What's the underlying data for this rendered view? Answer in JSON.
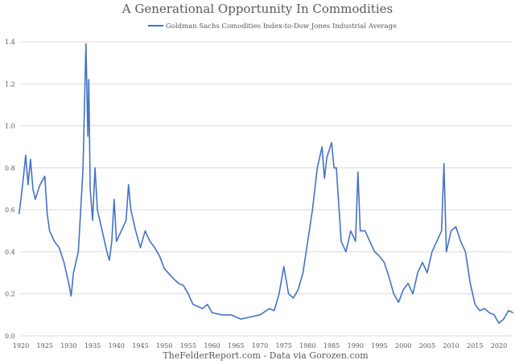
{
  "chart_data": {
    "type": "line",
    "title": "A Generational Opportunity In Commodities",
    "source_note": "TheFelderReport.com - Data via Gorozen.com",
    "legend_placement": "top",
    "grid": true,
    "xlim": [
      1920,
      2020
    ],
    "ylim": [
      0,
      1.4
    ],
    "x_ticks": [
      "1920",
      "1925",
      "1930",
      "1935",
      "1940",
      "1945",
      "1950",
      "1955",
      "1960",
      "1965",
      "1970",
      "1975",
      "1980",
      "1985",
      "1990",
      "1995",
      "2000",
      "2005",
      "2010",
      "2015",
      "2020"
    ],
    "y_ticks": [
      "0.0",
      "0.2",
      "0.4",
      "0.6",
      "0.8",
      "1.0",
      "1.2",
      "1.4"
    ],
    "series": [
      {
        "name": "Goldman Sachs Comodities Index-to-Dow Jones Industrial Average",
        "color": "#4472C4",
        "x": [
          1919.6,
          1920,
          1920.5,
          1921,
          1921.5,
          1922,
          1922.5,
          1923,
          1924,
          1925,
          1925.5,
          1926,
          1927,
          1928,
          1929,
          1930,
          1930.5,
          1931,
          1932,
          1932.5,
          1933,
          1933.3,
          1933.6,
          1934,
          1934.2,
          1934.5,
          1935,
          1935.5,
          1936,
          1937,
          1938,
          1938.5,
          1939,
          1939.5,
          1940,
          1941,
          1942,
          1942.5,
          1943,
          1944,
          1945,
          1946,
          1947,
          1948,
          1949,
          1950,
          1952,
          1953,
          1954,
          1955,
          1956,
          1958,
          1959,
          1960,
          1962,
          1964,
          1966,
          1968,
          1970,
          1972,
          1973,
          1974,
          1975,
          1976,
          1977,
          1978,
          1979,
          1980,
          1981,
          1982,
          1983,
          1983.5,
          1984,
          1985,
          1985.5,
          1986,
          1987,
          1988,
          1989,
          1990,
          1990.5,
          1991,
          1992,
          1993,
          1994,
          1995,
          1996,
          1997,
          1998,
          1999,
          2000,
          2001,
          2002,
          2003,
          2004,
          2005,
          2006,
          2007,
          2008,
          2008.5,
          2009,
          2010,
          2011,
          2012,
          2013,
          2014,
          2015,
          2016,
          2017,
          2018,
          2019,
          2020,
          2021,
          2022,
          2023
        ],
        "y": [
          0.58,
          0.65,
          0.75,
          0.86,
          0.72,
          0.84,
          0.7,
          0.65,
          0.72,
          0.76,
          0.58,
          0.5,
          0.45,
          0.42,
          0.35,
          0.25,
          0.19,
          0.3,
          0.4,
          0.6,
          0.8,
          1.1,
          1.39,
          0.95,
          1.22,
          0.7,
          0.55,
          0.8,
          0.6,
          0.5,
          0.4,
          0.36,
          0.45,
          0.65,
          0.45,
          0.5,
          0.55,
          0.72,
          0.6,
          0.5,
          0.42,
          0.5,
          0.45,
          0.42,
          0.38,
          0.32,
          0.27,
          0.25,
          0.24,
          0.2,
          0.15,
          0.13,
          0.15,
          0.11,
          0.1,
          0.1,
          0.08,
          0.09,
          0.1,
          0.13,
          0.12,
          0.2,
          0.33,
          0.2,
          0.18,
          0.22,
          0.3,
          0.45,
          0.6,
          0.8,
          0.9,
          0.75,
          0.85,
          0.92,
          0.8,
          0.8,
          0.45,
          0.4,
          0.5,
          0.45,
          0.78,
          0.5,
          0.5,
          0.45,
          0.4,
          0.38,
          0.35,
          0.28,
          0.2,
          0.16,
          0.22,
          0.25,
          0.2,
          0.3,
          0.35,
          0.3,
          0.4,
          0.45,
          0.5,
          0.82,
          0.4,
          0.5,
          0.52,
          0.45,
          0.4,
          0.25,
          0.15,
          0.12,
          0.13,
          0.11,
          0.1,
          0.06,
          0.08,
          0.12,
          0.11
        ]
      }
    ]
  }
}
